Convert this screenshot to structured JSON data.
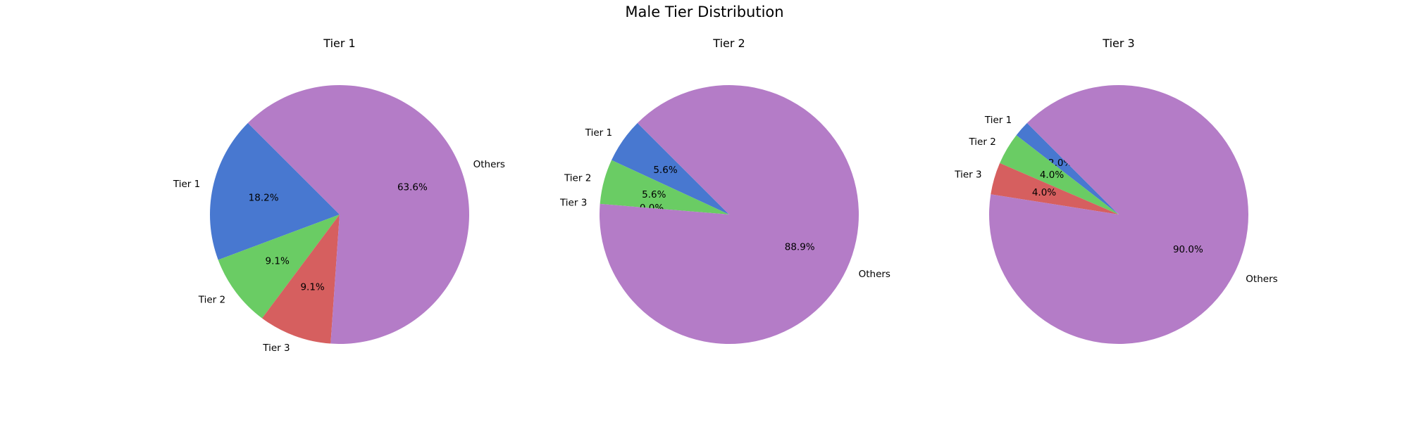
{
  "figure": {
    "title": "Male Tier Distribution"
  },
  "chart_data": [
    {
      "type": "pie",
      "title": "Tier 1",
      "categories": [
        "Tier 1",
        "Tier 2",
        "Tier 3",
        "Others"
      ],
      "values": [
        18.2,
        9.1,
        9.1,
        63.6
      ],
      "labels": [
        "18.2%",
        "9.1%",
        "9.1%",
        "63.6%"
      ],
      "colors": [
        "#4878d0",
        "#6acc64",
        "#d65f5f",
        "#b47cc7"
      ],
      "start_angle_deg": 135
    },
    {
      "type": "pie",
      "title": "Tier 2",
      "categories": [
        "Tier 1",
        "Tier 2",
        "Tier 3",
        "Others"
      ],
      "values": [
        5.6,
        5.6,
        0.0,
        88.9
      ],
      "labels": [
        "5.6%",
        "5.6%",
        "0.0%",
        "88.9%"
      ],
      "colors": [
        "#4878d0",
        "#6acc64",
        "#d65f5f",
        "#b47cc7"
      ],
      "start_angle_deg": 135
    },
    {
      "type": "pie",
      "title": "Tier 3",
      "categories": [
        "Tier 1",
        "Tier 2",
        "Tier 3",
        "Others"
      ],
      "values": [
        2.0,
        4.0,
        4.0,
        90.0
      ],
      "labels": [
        "2.0%",
        "4.0%",
        "4.0%",
        "90.0%"
      ],
      "colors": [
        "#4878d0",
        "#6acc64",
        "#d65f5f",
        "#b47cc7"
      ],
      "start_angle_deg": 135
    }
  ]
}
